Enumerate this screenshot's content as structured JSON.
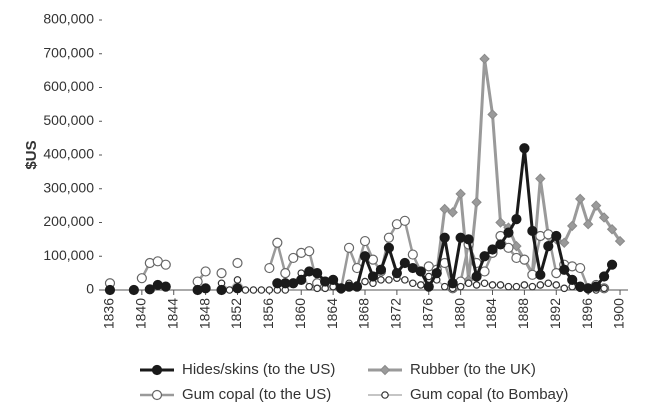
{
  "chart_data": {
    "type": "line",
    "y_label": "$US",
    "x": [
      1836,
      1837,
      1838,
      1839,
      1840,
      1841,
      1842,
      1843,
      1844,
      1845,
      1846,
      1847,
      1848,
      1849,
      1850,
      1851,
      1852,
      1853,
      1854,
      1855,
      1856,
      1857,
      1858,
      1859,
      1860,
      1861,
      1862,
      1863,
      1864,
      1865,
      1866,
      1867,
      1868,
      1869,
      1870,
      1871,
      1872,
      1873,
      1874,
      1875,
      1876,
      1877,
      1878,
      1879,
      1880,
      1881,
      1882,
      1883,
      1884,
      1885,
      1886,
      1887,
      1888,
      1889,
      1890,
      1891,
      1892,
      1893,
      1894,
      1895,
      1896,
      1897,
      1898,
      1899,
      1900
    ],
    "series": [
      {
        "name": "Hides/skins (to the US)",
        "color": "#1a1a1a",
        "values": [
          0,
          null,
          null,
          0,
          null,
          2000,
          15000,
          10000,
          null,
          null,
          null,
          0,
          5000,
          null,
          0,
          null,
          5000,
          null,
          null,
          null,
          null,
          20000,
          20000,
          20000,
          30000,
          55000,
          50000,
          25000,
          30000,
          5000,
          10000,
          10000,
          100000,
          40000,
          60000,
          125000,
          50000,
          80000,
          65000,
          55000,
          10000,
          50000,
          155000,
          20000,
          155000,
          150000,
          40000,
          100000,
          120000,
          135000,
          170000,
          210000,
          420000,
          175000,
          45000,
          130000,
          160000,
          60000,
          30000,
          10000,
          5000,
          10000,
          40000,
          75000,
          null
        ]
      },
      {
        "name": "Rubber (to the UK)",
        "color": "#9a9a9a",
        "values": [
          null,
          null,
          null,
          null,
          null,
          null,
          null,
          null,
          null,
          null,
          null,
          null,
          null,
          null,
          null,
          null,
          null,
          null,
          null,
          null,
          null,
          null,
          null,
          null,
          null,
          null,
          null,
          null,
          null,
          null,
          null,
          null,
          null,
          null,
          null,
          null,
          null,
          null,
          null,
          null,
          null,
          50000,
          240000,
          230000,
          285000,
          30000,
          260000,
          685000,
          520000,
          200000,
          185000,
          130000,
          90000,
          50000,
          330000,
          160000,
          150000,
          140000,
          190000,
          270000,
          195000,
          250000,
          215000,
          180000,
          145000
        ]
      },
      {
        "name": "Gum copal (to the US)",
        "color": "#9a9a9a",
        "values": [
          20000,
          null,
          null,
          null,
          35000,
          80000,
          85000,
          75000,
          null,
          null,
          null,
          25000,
          55000,
          null,
          50000,
          null,
          80000,
          null,
          null,
          null,
          65000,
          140000,
          50000,
          95000,
          110000,
          115000,
          20000,
          25000,
          15000,
          5000,
          125000,
          65000,
          145000,
          90000,
          55000,
          155000,
          195000,
          205000,
          105000,
          55000,
          70000,
          60000,
          80000,
          5000,
          25000,
          135000,
          80000,
          55000,
          110000,
          160000,
          125000,
          95000,
          90000,
          45000,
          160000,
          165000,
          50000,
          75000,
          70000,
          65000,
          5000,
          15000,
          5000,
          null,
          null
        ]
      },
      {
        "name": "Gum copal (to Bombay)",
        "color": "#bdbdbd",
        "values": [
          null,
          null,
          null,
          null,
          null,
          null,
          null,
          null,
          null,
          null,
          null,
          null,
          null,
          null,
          20000,
          0,
          30000,
          0,
          0,
          0,
          0,
          0,
          0,
          20000,
          50000,
          10000,
          5000,
          5000,
          10000,
          0,
          20000,
          15000,
          25000,
          20000,
          30000,
          30000,
          35000,
          30000,
          20000,
          15000,
          40000,
          30000,
          10000,
          5000,
          10000,
          20000,
          15000,
          20000,
          15000,
          15000,
          10000,
          10000,
          15000,
          10000,
          15000,
          20000,
          15000,
          5000,
          10000,
          5000,
          0,
          0,
          5000,
          null,
          null
        ]
      }
    ],
    "xlim": [
      1835,
      1901
    ],
    "xticks": [
      1836,
      1840,
      1844,
      1848,
      1852,
      1856,
      1860,
      1864,
      1868,
      1872,
      1876,
      1880,
      1884,
      1888,
      1892,
      1896,
      1900
    ],
    "ylim": [
      0,
      800000
    ],
    "yticks": [
      0,
      {
        "value": 100000,
        "label": "100,000"
      },
      {
        "value": 200000,
        "label": "200,000"
      },
      {
        "value": 300000,
        "label": "300,000"
      },
      {
        "value": 400000,
        "label": "400,000"
      },
      {
        "value": 500000,
        "label": "500,000"
      },
      {
        "value": 600000,
        "label": "600,000"
      },
      {
        "value": 700000,
        "label": "700,000"
      },
      {
        "value": 800000,
        "label": "800,000"
      }
    ],
    "grid": false,
    "legend": "bottom"
  }
}
